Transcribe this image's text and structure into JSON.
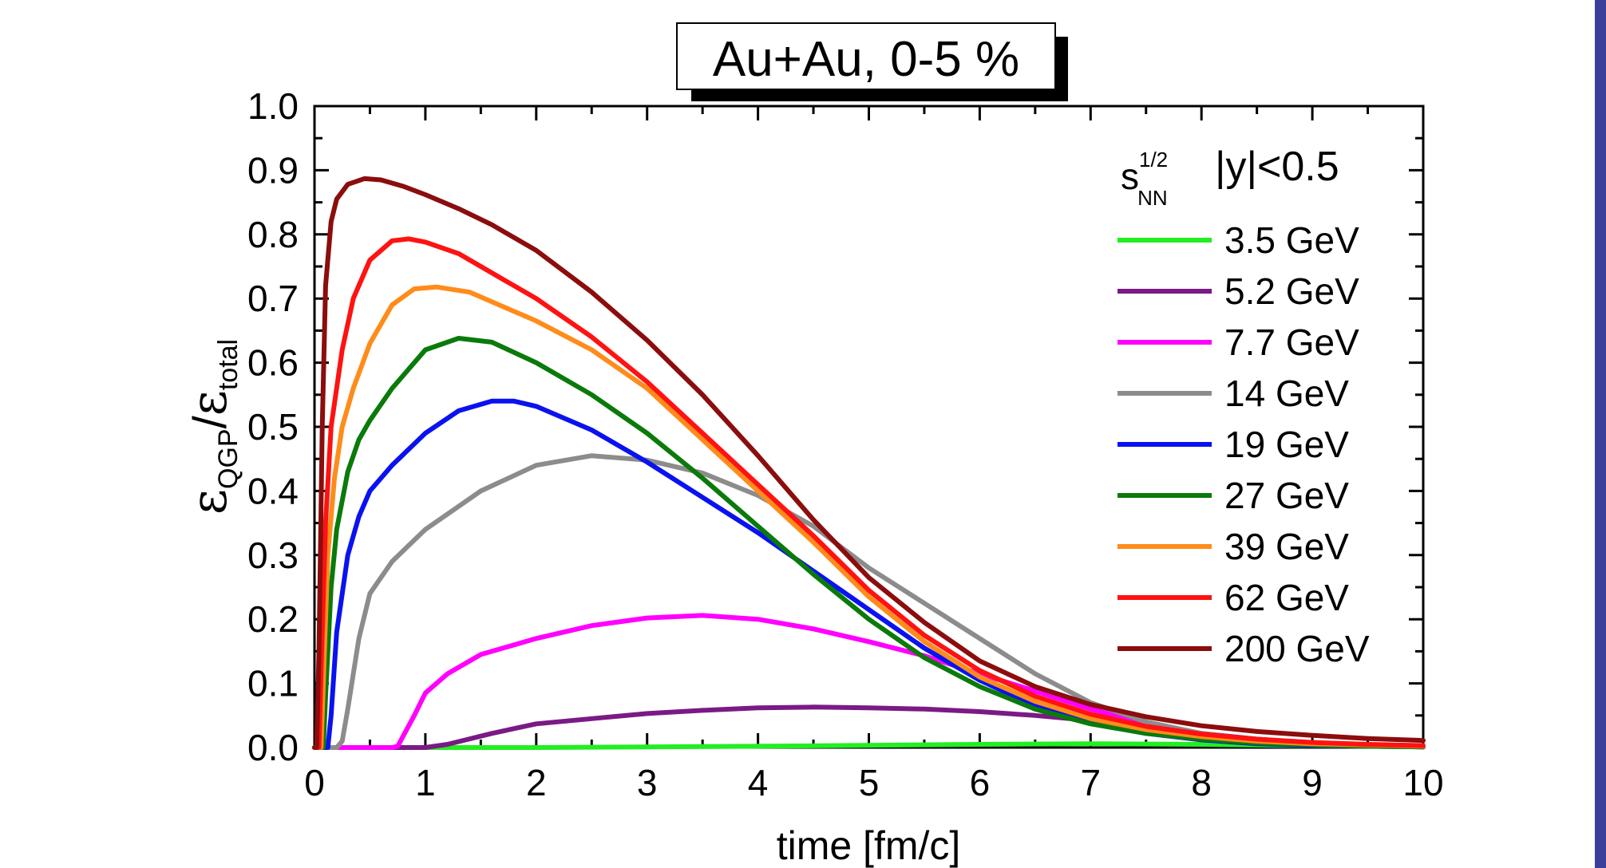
{
  "chart_data": {
    "type": "line",
    "title": "Au+Au, 0-5 %",
    "xlabel": "time [fm/c]",
    "ylabel": {
      "epsilon_num": "ε",
      "num_sub": "QGP",
      "slash": "/",
      "epsilon_den": "ε",
      "den_sub": "total"
    },
    "xlim": [
      0,
      10
    ],
    "ylim": [
      0,
      1.0
    ],
    "x_ticks": [
      "0",
      "1",
      "2",
      "3",
      "4",
      "5",
      "6",
      "7",
      "8",
      "9",
      "10"
    ],
    "y_ticks": [
      "0.0",
      "0.1",
      "0.2",
      "0.3",
      "0.4",
      "0.5",
      "0.6",
      "0.7",
      "0.8",
      "0.9",
      "1.0"
    ],
    "grid": false,
    "legend": {
      "placement": "top-right",
      "header_s": "s",
      "header_sup": "1/2",
      "header_sub": "NN",
      "header_rap": "|y|<0.5"
    },
    "series": [
      {
        "name": "3.5 GeV",
        "color": "#22ee22",
        "x": [
          0,
          2,
          4,
          6,
          7,
          8,
          9,
          10
        ],
        "y": [
          0,
          0.0,
          0.002,
          0.005,
          0.006,
          0.005,
          0.003,
          0.001
        ]
      },
      {
        "name": "5.2 GeV",
        "color": "#7a1a86",
        "x": [
          0,
          1.0,
          1.2,
          1.6,
          2.0,
          2.5,
          3.0,
          3.5,
          4.0,
          4.5,
          5.0,
          5.5,
          6.0,
          6.5,
          7.0,
          7.5,
          8.0,
          8.5,
          9.0,
          9.5,
          10
        ],
        "y": [
          0,
          0.0,
          0.005,
          0.022,
          0.037,
          0.045,
          0.053,
          0.058,
          0.062,
          0.063,
          0.062,
          0.06,
          0.056,
          0.05,
          0.042,
          0.032,
          0.022,
          0.013,
          0.007,
          0.004,
          0.002
        ]
      },
      {
        "name": "7.7 GeV",
        "color": "#ff00ff",
        "x": [
          0,
          0.7,
          0.75,
          0.9,
          1.0,
          1.2,
          1.5,
          2.0,
          2.5,
          3.0,
          3.5,
          4.0,
          4.5,
          5.0,
          5.5,
          6.0,
          6.5,
          7.0,
          7.5,
          8.0,
          8.5,
          9.0,
          9.5,
          10
        ],
        "y": [
          0,
          0,
          0.002,
          0.05,
          0.085,
          0.115,
          0.145,
          0.17,
          0.19,
          0.202,
          0.206,
          0.2,
          0.185,
          0.165,
          0.143,
          0.115,
          0.088,
          0.06,
          0.038,
          0.022,
          0.012,
          0.006,
          0.003,
          0.001
        ]
      },
      {
        "name": "14 GeV",
        "color": "#8c8c8c",
        "x": [
          0,
          0.2,
          0.25,
          0.3,
          0.4,
          0.5,
          0.7,
          1.0,
          1.5,
          2.0,
          2.5,
          3.0,
          3.5,
          4.0,
          4.5,
          5.0,
          5.5,
          6.0,
          6.5,
          7.0,
          7.5,
          8.0,
          8.5,
          9.0,
          9.5,
          10
        ],
        "y": [
          0,
          0,
          0.01,
          0.06,
          0.17,
          0.24,
          0.29,
          0.34,
          0.4,
          0.44,
          0.455,
          0.448,
          0.428,
          0.393,
          0.345,
          0.28,
          0.225,
          0.17,
          0.115,
          0.07,
          0.04,
          0.022,
          0.012,
          0.006,
          0.003,
          0.002
        ]
      },
      {
        "name": "19 GeV",
        "color": "#0a12f0",
        "x": [
          0,
          0.12,
          0.15,
          0.2,
          0.3,
          0.4,
          0.5,
          0.7,
          1.0,
          1.3,
          1.6,
          1.8,
          2.0,
          2.5,
          3.0,
          3.5,
          4.0,
          4.5,
          5.0,
          5.5,
          6.0,
          6.5,
          7.0,
          7.5,
          8.0,
          8.5,
          9.0,
          9.5,
          10
        ],
        "y": [
          0,
          0,
          0.05,
          0.18,
          0.3,
          0.36,
          0.4,
          0.44,
          0.49,
          0.525,
          0.54,
          0.54,
          0.532,
          0.495,
          0.445,
          0.39,
          0.335,
          0.275,
          0.215,
          0.155,
          0.105,
          0.065,
          0.038,
          0.022,
          0.012,
          0.006,
          0.003,
          0.002,
          0.001
        ]
      },
      {
        "name": "27 GeV",
        "color": "#0a7a0a",
        "x": [
          0,
          0.08,
          0.1,
          0.15,
          0.2,
          0.3,
          0.4,
          0.5,
          0.7,
          1.0,
          1.3,
          1.6,
          2.0,
          2.5,
          3.0,
          3.5,
          4.0,
          4.5,
          5.0,
          5.5,
          6.0,
          6.5,
          7.0,
          7.5,
          8.0,
          8.5,
          9.0,
          9.5,
          10
        ],
        "y": [
          0,
          0,
          0.08,
          0.25,
          0.34,
          0.43,
          0.48,
          0.51,
          0.56,
          0.62,
          0.638,
          0.632,
          0.6,
          0.55,
          0.49,
          0.42,
          0.345,
          0.27,
          0.2,
          0.14,
          0.095,
          0.06,
          0.037,
          0.022,
          0.013,
          0.007,
          0.004,
          0.002,
          0.001
        ]
      },
      {
        "name": "39 GeV",
        "color": "#ff8c1a",
        "x": [
          0,
          0.06,
          0.08,
          0.12,
          0.18,
          0.25,
          0.35,
          0.5,
          0.7,
          0.9,
          1.1,
          1.4,
          1.8,
          2.0,
          2.5,
          3.0,
          3.5,
          4.0,
          4.5,
          5.0,
          5.5,
          6.0,
          6.5,
          7.0,
          7.5,
          8.0,
          8.5,
          9.0,
          9.5,
          10
        ],
        "y": [
          0,
          0,
          0.1,
          0.3,
          0.42,
          0.5,
          0.56,
          0.63,
          0.69,
          0.715,
          0.718,
          0.71,
          0.68,
          0.665,
          0.62,
          0.56,
          0.48,
          0.4,
          0.32,
          0.235,
          0.165,
          0.11,
          0.072,
          0.045,
          0.028,
          0.017,
          0.01,
          0.006,
          0.004,
          0.002
        ]
      },
      {
        "name": "62 GeV",
        "color": "#ff1212",
        "x": [
          0,
          0.04,
          0.06,
          0.1,
          0.15,
          0.25,
          0.35,
          0.5,
          0.7,
          0.85,
          1.0,
          1.3,
          1.7,
          2.0,
          2.5,
          3.0,
          3.5,
          4.0,
          4.5,
          5.0,
          5.5,
          6.0,
          6.5,
          7.0,
          7.5,
          8.0,
          8.5,
          9.0,
          9.5,
          10
        ],
        "y": [
          0,
          0,
          0.12,
          0.35,
          0.5,
          0.62,
          0.7,
          0.76,
          0.79,
          0.793,
          0.788,
          0.77,
          0.73,
          0.7,
          0.64,
          0.57,
          0.49,
          0.41,
          0.33,
          0.245,
          0.175,
          0.12,
          0.08,
          0.052,
          0.033,
          0.021,
          0.013,
          0.008,
          0.005,
          0.003
        ]
      },
      {
        "name": "200 GeV",
        "color": "#8b0d0d",
        "x": [
          0,
          0.02,
          0.04,
          0.07,
          0.1,
          0.15,
          0.2,
          0.3,
          0.45,
          0.6,
          0.8,
          1.0,
          1.3,
          1.6,
          2.0,
          2.5,
          3.0,
          3.5,
          4.0,
          4.5,
          5.0,
          5.5,
          6.0,
          6.5,
          7.0,
          7.5,
          8.0,
          8.5,
          9.0,
          9.5,
          10
        ],
        "y": [
          0,
          0,
          0.15,
          0.5,
          0.72,
          0.82,
          0.855,
          0.878,
          0.887,
          0.885,
          0.875,
          0.862,
          0.84,
          0.815,
          0.775,
          0.71,
          0.635,
          0.55,
          0.455,
          0.355,
          0.265,
          0.195,
          0.135,
          0.095,
          0.067,
          0.048,
          0.034,
          0.025,
          0.019,
          0.014,
          0.011
        ]
      }
    ]
  }
}
